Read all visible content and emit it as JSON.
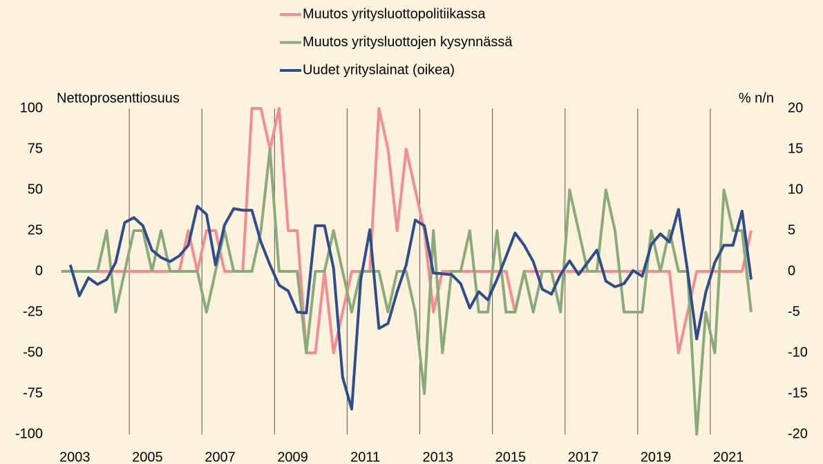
{
  "chart_data": {
    "type": "line",
    "ylabel": "Nettoprosenttiosuus",
    "y2label": "% n/n",
    "categories": [
      "2003",
      null,
      null,
      null,
      null,
      null,
      null,
      null,
      "2005",
      null,
      null,
      null,
      null,
      null,
      null,
      null,
      "2007",
      null,
      null,
      null,
      null,
      null,
      null,
      null,
      "2009",
      null,
      null,
      null,
      null,
      null,
      null,
      null,
      "2011",
      null,
      null,
      null,
      null,
      null,
      null,
      null,
      "2013",
      null,
      null,
      null,
      null,
      null,
      null,
      null,
      "2015",
      null,
      null,
      null,
      null,
      null,
      null,
      null,
      "2017",
      null,
      null,
      null,
      null,
      null,
      null,
      null,
      "2019",
      null,
      null,
      null,
      null,
      null,
      null,
      null,
      "2021",
      null,
      null,
      null,
      null,
      null,
      null,
      null
    ],
    "series": [
      {
        "name": "Muutos yritysluottopolitiikassa",
        "color": "#f28e92",
        "values": [
          0,
          0,
          0,
          0,
          0,
          0,
          0,
          0,
          0,
          0,
          0,
          0,
          0,
          0,
          25,
          0,
          25,
          25,
          0,
          0,
          0,
          100,
          100,
          75,
          100,
          25,
          25,
          -50,
          -50,
          0,
          -50,
          -25,
          0,
          0,
          0,
          100,
          75,
          25,
          75,
          50,
          25,
          -25,
          0,
          0,
          0,
          0,
          0,
          0,
          0,
          0,
          -25,
          0,
          0,
          0,
          0,
          0,
          0,
          0,
          0,
          0,
          0,
          0,
          0,
          0,
          0,
          0,
          0,
          0,
          -50,
          -25,
          0,
          0,
          0,
          0,
          0,
          0,
          25,
          null,
          null,
          null
        ]
      },
      {
        "name": "Muutos yritysluottojen kysynnässä",
        "color": "#8aab79",
        "values": [
          0,
          0,
          0,
          0,
          0,
          25,
          -25,
          0,
          25,
          25,
          0,
          25,
          0,
          0,
          0,
          0,
          -25,
          0,
          25,
          0,
          0,
          0,
          25,
          75,
          0,
          0,
          0,
          -50,
          0,
          0,
          25,
          0,
          -25,
          0,
          0,
          0,
          -25,
          0,
          0,
          -25,
          -75,
          25,
          -50,
          0,
          0,
          25,
          -25,
          -25,
          25,
          -25,
          -25,
          0,
          -25,
          0,
          0,
          -25,
          50,
          25,
          0,
          0,
          50,
          25,
          -25,
          -25,
          -25,
          25,
          0,
          25,
          0,
          0,
          -100,
          -25,
          -50,
          50,
          25,
          25,
          -25,
          null,
          null,
          null
        ]
      },
      {
        "name": "Uudet yrityslainat (oikea)",
        "color": "#2f4d8c",
        "axis": "y2",
        "values": [
          null,
          0.8,
          -3,
          -0.8,
          -1.6,
          -1,
          1.1,
          6,
          6.6,
          5.6,
          2.6,
          1.7,
          1.2,
          1.9,
          3.2,
          8,
          7,
          0.8,
          5.7,
          7.7,
          7.5,
          7.5,
          3.6,
          0.8,
          -1.7,
          -2.4,
          -5,
          -5.1,
          5.6,
          5.6,
          0.4,
          -13,
          -16.9,
          -1,
          5.1,
          -7,
          -6.4,
          -2.5,
          0.8,
          6.3,
          5.6,
          -0.2,
          -0.3,
          -0.4,
          -1.5,
          -4.5,
          -2.5,
          -3.5,
          -1,
          1.8,
          4.7,
          3.2,
          1.2,
          -2.2,
          -2.8,
          -0.4,
          1.3,
          -0.4,
          1.1,
          2.6,
          -1.2,
          -1.9,
          -1.5,
          0.1,
          -0.6,
          3.3,
          4.6,
          3.6,
          7.6,
          0,
          -8.3,
          -2.6,
          1.1,
          3.2,
          3.2,
          7.4,
          -1,
          null,
          null,
          null
        ]
      }
    ],
    "ylim": [
      -100,
      100
    ],
    "yticks": [
      -100,
      -75,
      -50,
      -25,
      0,
      25,
      50,
      75,
      100
    ],
    "y2lim": [
      -20,
      20
    ],
    "y2ticks": [
      -20,
      -15,
      -10,
      -5,
      0,
      5,
      10,
      15,
      20
    ],
    "grid": true,
    "legend": "top"
  }
}
